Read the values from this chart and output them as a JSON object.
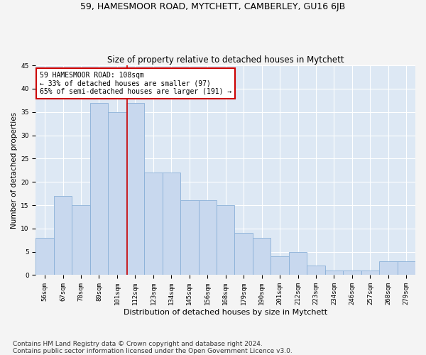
{
  "title": "59, HAMESMOOR ROAD, MYTCHETT, CAMBERLEY, GU16 6JB",
  "subtitle": "Size of property relative to detached houses in Mytchett",
  "xlabel": "Distribution of detached houses by size in Mytchett",
  "ylabel": "Number of detached properties",
  "footer": "Contains HM Land Registry data © Crown copyright and database right 2024.\nContains public sector information licensed under the Open Government Licence v3.0.",
  "categories": [
    "56sqm",
    "67sqm",
    "78sqm",
    "89sqm",
    "101sqm",
    "112sqm",
    "123sqm",
    "134sqm",
    "145sqm",
    "156sqm",
    "168sqm",
    "179sqm",
    "190sqm",
    "201sqm",
    "212sqm",
    "223sqm",
    "234sqm",
    "246sqm",
    "257sqm",
    "268sqm",
    "279sqm"
  ],
  "values": [
    8,
    17,
    15,
    37,
    35,
    37,
    22,
    22,
    16,
    16,
    15,
    9,
    8,
    4,
    5,
    2,
    1,
    1,
    1,
    3,
    3
  ],
  "bar_color": "#c8d8ee",
  "bar_edge_color": "#8ab0d8",
  "marker_label": "59 HAMESMOOR ROAD: 108sqm",
  "annotation_line1": "← 33% of detached houses are smaller (97)",
  "annotation_line2": "65% of semi-detached houses are larger (191) →",
  "annotation_box_color": "#ffffff",
  "annotation_box_edge": "#cc0000",
  "vline_color": "#cc0000",
  "vline_x_category_index": 4.55,
  "ylim": [
    0,
    45
  ],
  "yticks": [
    0,
    5,
    10,
    15,
    20,
    25,
    30,
    35,
    40,
    45
  ],
  "fig_background": "#f4f4f4",
  "plot_background": "#dde8f4",
  "grid_color": "#ffffff",
  "title_fontsize": 9,
  "subtitle_fontsize": 8.5,
  "xlabel_fontsize": 8,
  "ylabel_fontsize": 7.5,
  "tick_fontsize": 6.5,
  "annotation_fontsize": 7,
  "footer_fontsize": 6.5
}
